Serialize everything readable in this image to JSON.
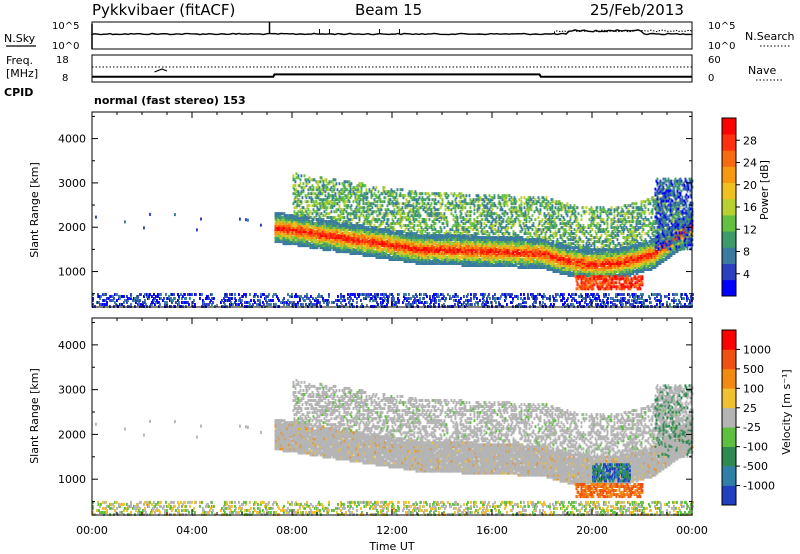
{
  "header": {
    "station": "Pykkvibaer (fitACF)",
    "beam": "Beam 15",
    "date": "25/Feb/2013"
  },
  "status_panels": {
    "nsky": {
      "left_label": "N.Sky",
      "right_label": "N.Search",
      "left_ticks": [
        "10^5",
        "10^0"
      ],
      "right_ticks": [
        "10^5",
        "10^0"
      ]
    },
    "freq": {
      "left_label_top": "Freq.",
      "left_label_bottom": "[MHz]",
      "right_label": "Nave",
      "left_ticks": [
        "18",
        "8"
      ],
      "right_ticks": [
        "60",
        "0"
      ],
      "freq_steps": [
        {
          "t": 0.0,
          "mhz": 10.2
        },
        {
          "t": 7.25,
          "mhz": 10.2
        },
        {
          "t": 7.3,
          "mhz": 11.8
        },
        {
          "t": 17.9,
          "mhz": 11.8
        },
        {
          "t": 17.95,
          "mhz": 10.2
        },
        {
          "t": 24.0,
          "mhz": 10.2
        }
      ]
    },
    "cpid": {
      "label": "CPID",
      "text": "normal (fast stereo) 153"
    }
  },
  "chart_data": [
    {
      "type": "heatmap",
      "quantity": "power",
      "xlabel": "",
      "ylabel": "Slant Range [km]",
      "xlim": [
        0,
        24
      ],
      "ylim": [
        200,
        4600
      ],
      "yticks": [
        "4000",
        "3000",
        "2000",
        "1000"
      ],
      "colorbar": {
        "label": "Power [dB]",
        "ticks": [
          "28",
          "24",
          "20",
          "16",
          "12",
          "8",
          "4"
        ],
        "colors": [
          "#0000ff",
          "#2b3fbf",
          "#3a7aa0",
          "#3f9a6a",
          "#63c040",
          "#b8d030",
          "#f0c020",
          "#f59a10",
          "#f86a10",
          "#ff3010",
          "#ff0000"
        ]
      }
    },
    {
      "type": "heatmap",
      "quantity": "velocity",
      "xlabel": "Time UT",
      "ylabel": "Slant Range [km]",
      "xlim": [
        0,
        24
      ],
      "ylim": [
        200,
        4600
      ],
      "xticks": [
        "00:00",
        "04:00",
        "08:00",
        "12:00",
        "16:00",
        "20:00",
        "00:00"
      ],
      "yticks": [
        "4000",
        "3000",
        "2000",
        "1000"
      ],
      "colorbar": {
        "label": "Velocity [m s⁻¹]",
        "ticks": [
          "1000",
          "500",
          "100",
          "25",
          "-25",
          "-100",
          "-500",
          "-1000"
        ],
        "colors": [
          "#2040c0",
          "#2f7fa8",
          "#2e8a50",
          "#5ec040",
          "#b4b4b4",
          "#f0c030",
          "#f08a10",
          "#f05010",
          "#ff0000"
        ]
      }
    }
  ],
  "ground_scatter_color": "#b4b4b4"
}
